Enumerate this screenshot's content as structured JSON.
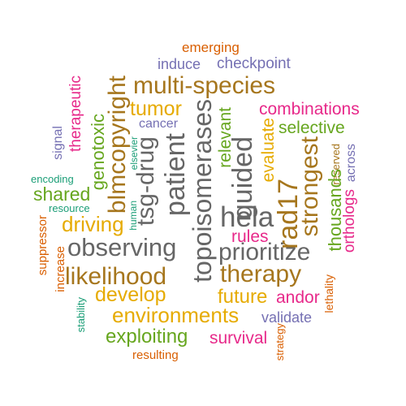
{
  "colors": {
    "orange": "#d95f02",
    "purple": "#7570b3",
    "magenta": "#e7298a",
    "green": "#66a61e",
    "gold": "#e6ab02",
    "brown": "#a6761d",
    "gray": "#666666",
    "teal": "#1b9e77"
  },
  "words": {
    "emerging": "emerging",
    "induce": "induce",
    "checkpoint": "checkpoint",
    "therapeutic": "therapeutic",
    "genotoxic": "genotoxic",
    "blmcopyright": "blmcopyright",
    "multi_species": "multi-species",
    "tumor": "tumor",
    "topoisomerases": "topoisomerases",
    "relevant": "relevant",
    "combinations": "combinations",
    "cancer": "cancer",
    "evaluate": "evaluate",
    "selective": "selective",
    "signal": "signal",
    "elsevier": "elsevier",
    "tsg_drug": "tsg-drug",
    "patient": "patient",
    "guided": "guided",
    "strongest": "strongest",
    "reserved": "reserved",
    "across": "across",
    "encoding": "encoding",
    "shared": "shared",
    "thousands": "thousands",
    "resource": "resource",
    "human": "human",
    "hela": "hela",
    "rad17": "rad17",
    "orthologs": "orthologs",
    "driving": "driving",
    "rules": "rules",
    "suppressor": "suppressor",
    "observing": "observing",
    "prioritize": "prioritize",
    "increase": "increase",
    "likelihood": "likelihood",
    "therapy": "therapy",
    "develop": "develop",
    "future": "future",
    "andor": "andor",
    "lethality": "lethality",
    "environments": "environments",
    "validate": "validate",
    "stability": "stability",
    "exploiting": "exploiting",
    "survival": "survival",
    "strategy": "strategy",
    "resulting": "resulting"
  }
}
